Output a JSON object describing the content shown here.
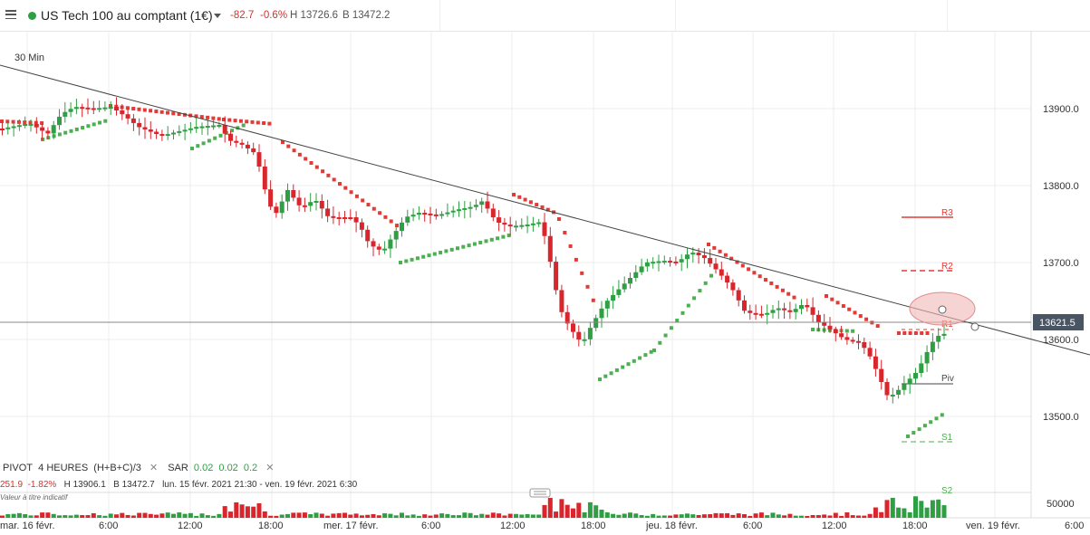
{
  "header": {
    "instrument": "US Tech 100 au comptant (1€)",
    "change": "-82.7",
    "change_pct": "-0.6%",
    "high": "H 13726.6",
    "bid": "B 13472.2"
  },
  "chart": {
    "timeframe": "30 Min",
    "price_ticks": [
      "13900.0",
      "13800.0",
      "13700.0",
      "13600.0",
      "13500.0"
    ],
    "current_price": "13621.5",
    "volume_tick": "50000",
    "time_labels": [
      "mar. 16 févr.",
      "6:00",
      "12:00",
      "18:00",
      "mer. 17 févr.",
      "6:00",
      "12:00",
      "18:00",
      "jeu. 18 févr.",
      "6:00",
      "12:00",
      "18:00",
      "ven. 19 févr.",
      "6:00"
    ],
    "pivot_labels": [
      "R3",
      "R2",
      "R1",
      "Piv",
      "S1",
      "S2"
    ]
  },
  "indicators": {
    "pivot_name": "PIVOT",
    "pivot_period": "4 HEURES",
    "pivot_formula": "(H+B+C)/3",
    "sar_name": "SAR",
    "sar_params": [
      "0.02",
      "0.02",
      "0.2"
    ]
  },
  "info": {
    "value": "251.9",
    "pct": "-1.82%",
    "high": "H 13906.1",
    "bid": "B 13472.7",
    "range": "lun. 15 févr. 2021 21:30 - ven. 19 févr. 2021 6:30",
    "note": "Valeur à titre indicatif"
  },
  "colors": {
    "up": "#2ea043",
    "down": "#d9252c",
    "sar_up": "#4caf50",
    "sar_down": "#e53935"
  }
}
